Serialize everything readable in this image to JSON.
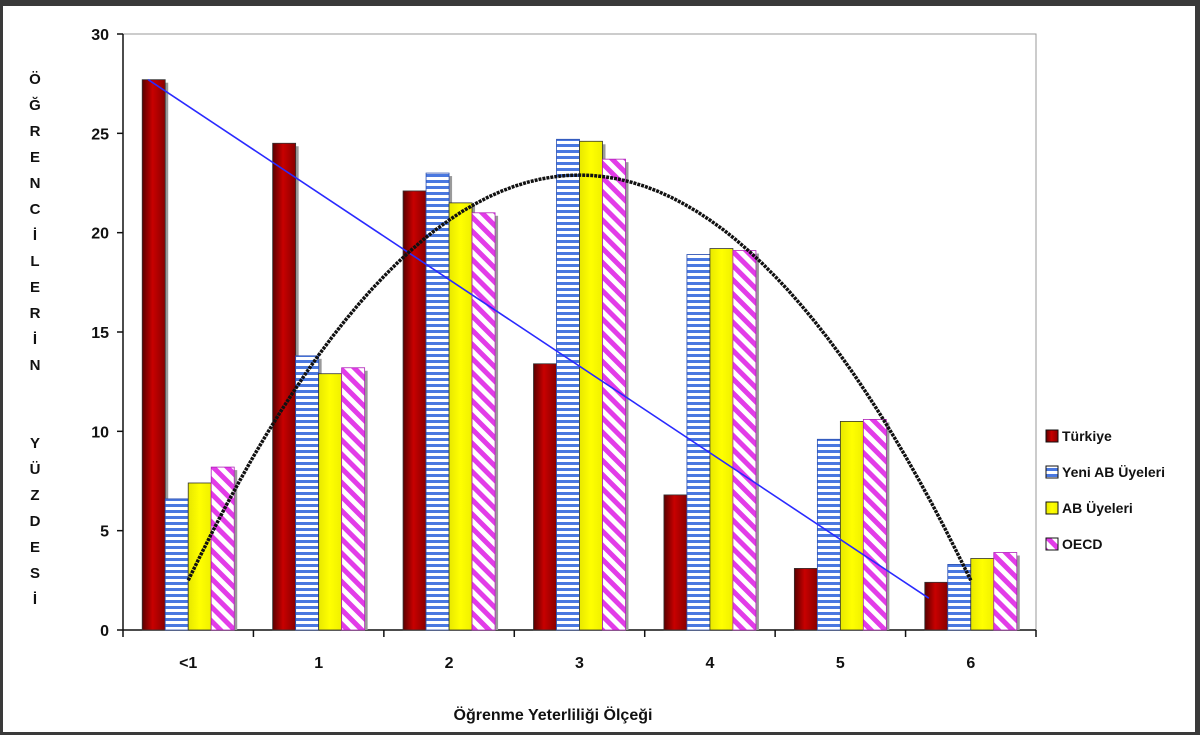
{
  "chart_data": {
    "type": "bar",
    "xlabel": "Öğrenme Yeterliliği Ölçeği",
    "ylabel": "ÖĞRENCİLERİN YÜZDESİ",
    "ylabel_lines": [
      "Ö",
      "Ğ",
      "R",
      "E",
      "N",
      "C",
      "İ",
      "L",
      "E",
      "R",
      "İ",
      "N",
      "",
      "",
      "Y",
      "Ü",
      "Z",
      "D",
      "E",
      "S",
      "İ"
    ],
    "ylim": [
      0,
      30
    ],
    "yticks": [
      0,
      5,
      10,
      15,
      20,
      25,
      30
    ],
    "categories": [
      "<1",
      "1",
      "2",
      "3",
      "4",
      "5",
      "6"
    ],
    "legend_position": "right",
    "series": [
      {
        "name": "Türkiye",
        "color": "#b40000",
        "pattern": "solid",
        "values": [
          27.7,
          24.5,
          22.1,
          13.4,
          6.8,
          3.1,
          2.4
        ]
      },
      {
        "name": "Yeni AB Üyeleri",
        "color": "#4a78e0",
        "pattern": "horizontal-stripes",
        "values": [
          6.6,
          13.8,
          23.0,
          24.7,
          18.9,
          9.6,
          3.3
        ]
      },
      {
        "name": "AB Üyeleri",
        "color": "#ffff00",
        "pattern": "solid",
        "values": [
          7.4,
          12.9,
          21.5,
          24.6,
          19.2,
          10.5,
          3.6
        ]
      },
      {
        "name": "OECD",
        "color": "#e23ce8",
        "pattern": "diagonal-stripes",
        "values": [
          8.2,
          13.2,
          21.0,
          23.7,
          19.1,
          10.6,
          3.9
        ]
      }
    ],
    "trendlines": [
      {
        "kind": "linear",
        "color": "#2a2aff",
        "from": {
          "x": "<1",
          "y": 27.7
        },
        "to": {
          "x": "6",
          "y": 1.6
        }
      },
      {
        "kind": "polynomial",
        "color": "#111111",
        "points": [
          {
            "x": "<1",
            "y": 2.5
          },
          {
            "x": "3",
            "y": 22.9
          },
          {
            "x": "6",
            "y": 2.5
          }
        ]
      }
    ]
  }
}
